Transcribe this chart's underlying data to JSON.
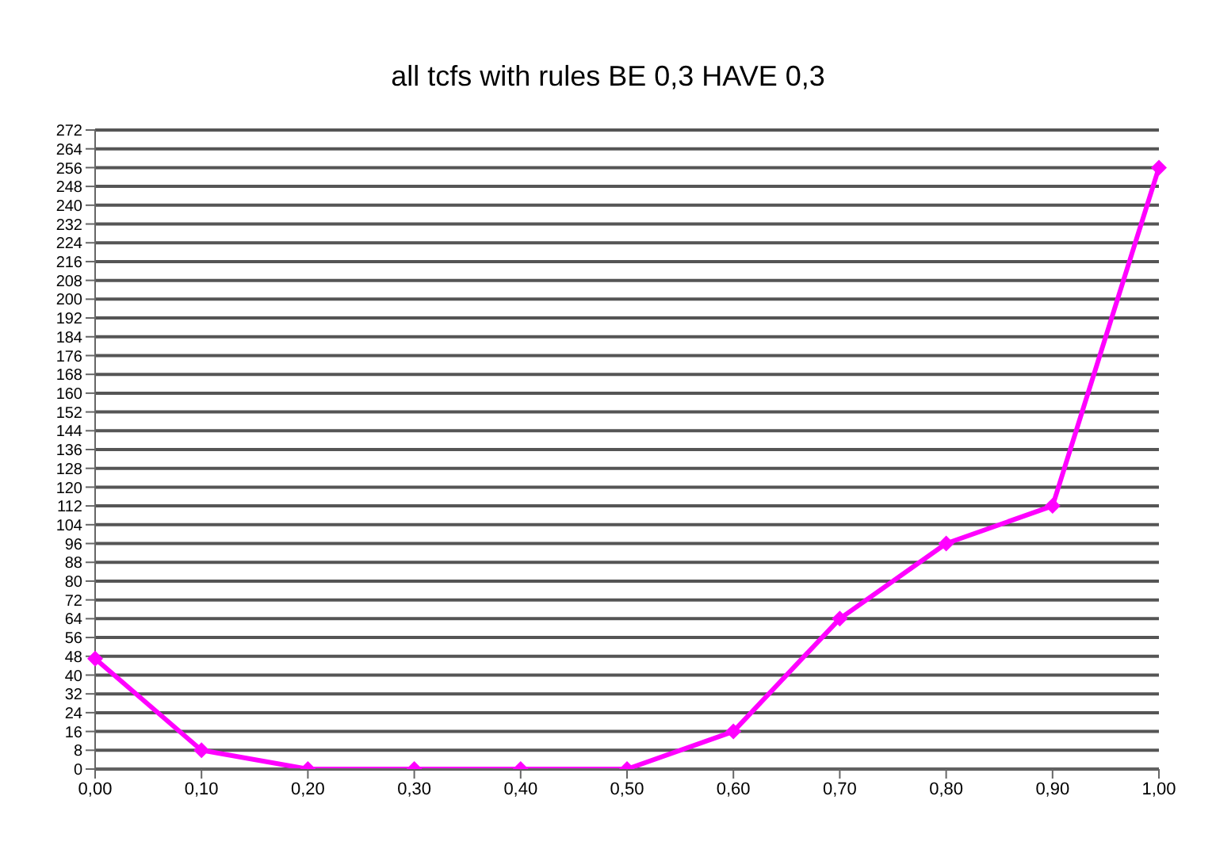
{
  "chart_data": {
    "type": "line",
    "title": "all tcfs with rules BE 0,3 HAVE 0,3",
    "categories": [
      "0,00",
      "0,10",
      "0,20",
      "0,30",
      "0,40",
      "0,50",
      "0,60",
      "0,70",
      "0,80",
      "0,90",
      "1,00"
    ],
    "series": [
      {
        "color": "#ff00ff",
        "values": [
          47,
          8,
          0,
          0,
          0,
          0,
          16,
          64,
          96,
          112,
          256
        ]
      }
    ],
    "ylim": [
      0,
      272
    ],
    "yticks": [
      0,
      8,
      16,
      24,
      32,
      40,
      48,
      56,
      64,
      72,
      80,
      88,
      96,
      104,
      112,
      120,
      128,
      136,
      144,
      152,
      160,
      168,
      176,
      184,
      192,
      200,
      208,
      216,
      224,
      232,
      240,
      248,
      256,
      264,
      272
    ],
    "grid": "y",
    "marker": "diamond"
  }
}
